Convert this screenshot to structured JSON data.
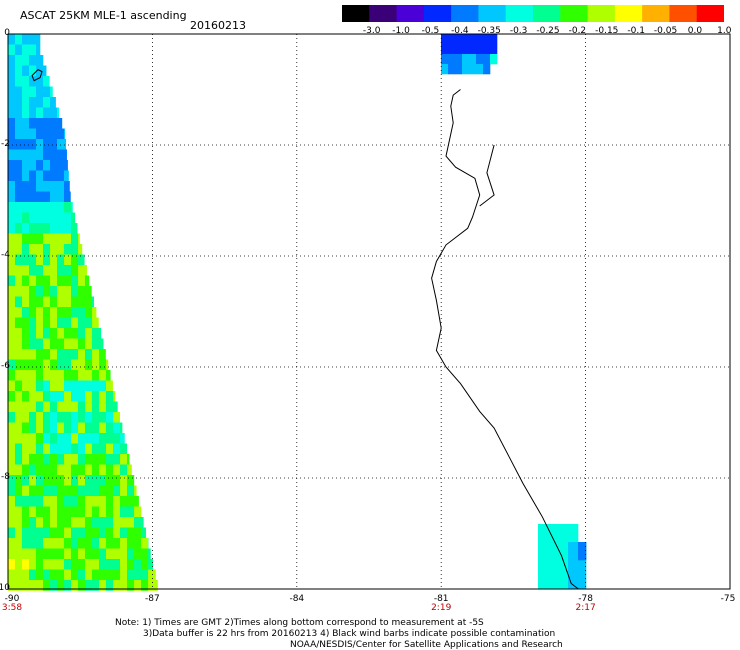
{
  "header": {
    "title": "ASCAT 25KM MLE-1 ascending",
    "date": "20160213"
  },
  "colorbar": {
    "labels": [
      "-3.0",
      "-1.0",
      "-0.5",
      "-0.4",
      "-0.35",
      "-0.3",
      "-0.25",
      "-0.2",
      "-0.15",
      "-0.1",
      "-0.05",
      "0.0",
      "1.0"
    ],
    "colors": [
      "#000000",
      "#3a0078",
      "#4c00d8",
      "#0028ff",
      "#007aff",
      "#00c8ff",
      "#00ffe0",
      "#00ff90",
      "#30ff00",
      "#b0ff00",
      "#ffff00",
      "#ffb000",
      "#ff5000",
      "#ff0000"
    ]
  },
  "axes": {
    "x_ticks": [
      "-90",
      "-87",
      "-84",
      "-81",
      "-78",
      "-75"
    ],
    "y_ticks": [
      "0",
      "-2",
      "-4",
      "-6",
      "-8",
      "-10"
    ],
    "time_ticks": [
      {
        "lon": -90,
        "label": "3:58"
      },
      {
        "lon": -81,
        "label": "2:19"
      },
      {
        "lon": -78,
        "label": "2:17"
      }
    ],
    "lon_range": [
      -90,
      -75
    ],
    "lat_range": [
      -10,
      0
    ]
  },
  "notes": {
    "line1": "Note: 1) Times are GMT 2)Times along bottom correspond to measurement at -5S",
    "line2": "3)Data buffer is 22 hrs from 20160213 4) Black wind barbs indicate possible contamination",
    "line3": "NOAA/NESDIS/Center for Satellite Applications and Research"
  }
}
